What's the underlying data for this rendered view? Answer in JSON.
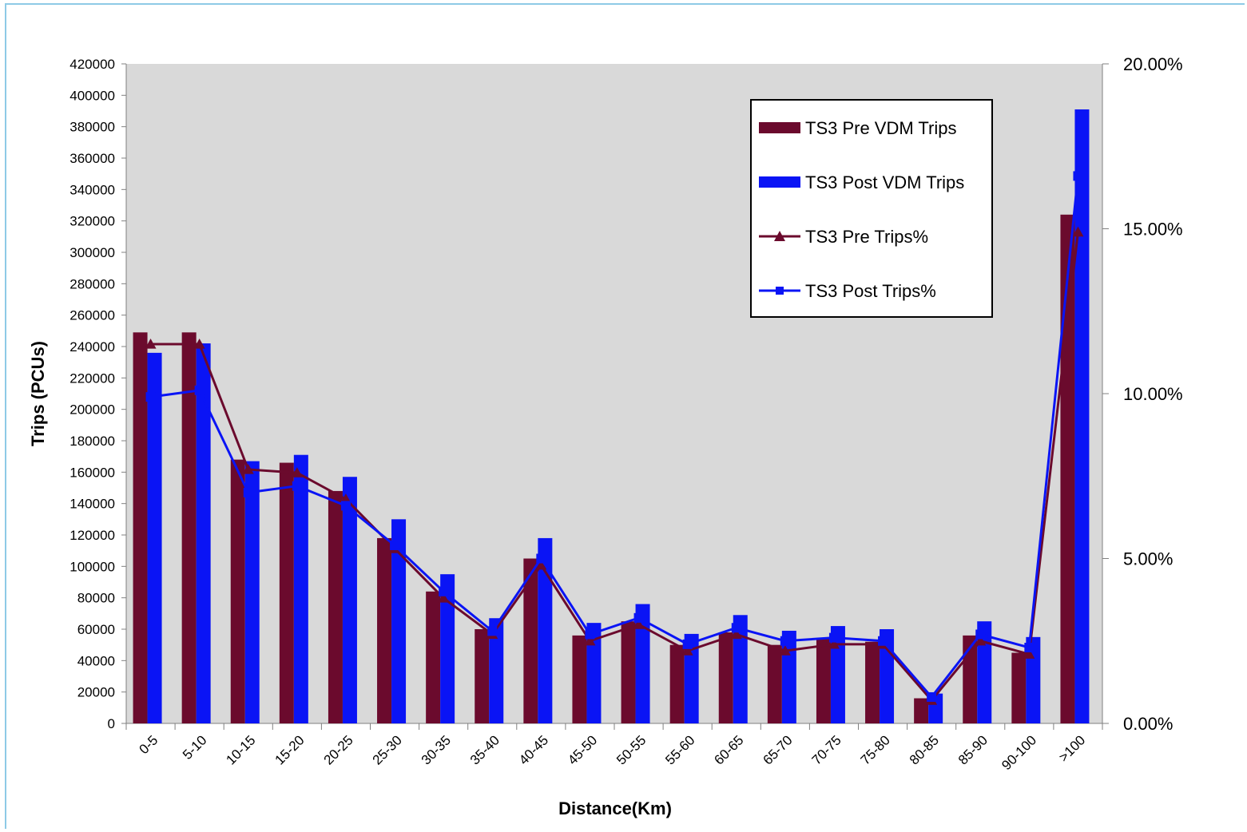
{
  "chart_data": {
    "type": "bar",
    "categories": [
      "0-5",
      "5-10",
      "10-15",
      "15-20",
      "20-25",
      "25-30",
      "30-35",
      "35-40",
      "40-45",
      "45-50",
      "50-55",
      "55-60",
      "60-65",
      "65-70",
      "70-75",
      "75-80",
      "80-85",
      "85-90",
      "90-100",
      ">100"
    ],
    "series": [
      {
        "name": "TS3 Pre VDM Trips",
        "type": "bar",
        "axis": "left",
        "color": "#6b0a2d",
        "values": [
          249000,
          249000,
          168000,
          166000,
          148000,
          118000,
          84000,
          60000,
          105000,
          56000,
          65000,
          50000,
          58000,
          50000,
          54000,
          52000,
          16000,
          56000,
          45000,
          324000
        ]
      },
      {
        "name": "TS3 Post VDM Trips",
        "type": "bar",
        "axis": "left",
        "color": "#0a14f5",
        "values": [
          236000,
          242000,
          167000,
          171000,
          157000,
          130000,
          95000,
          67000,
          118000,
          64000,
          76000,
          57000,
          69000,
          59000,
          62000,
          60000,
          19000,
          65000,
          55000,
          391000
        ]
      },
      {
        "name": "TS3 Pre Trips%",
        "type": "line",
        "axis": "right",
        "marker": "triangle",
        "color": "#6b0a2d",
        "values": [
          11.5,
          11.5,
          7.7,
          7.6,
          6.8,
          5.3,
          3.8,
          2.7,
          4.8,
          2.5,
          3.0,
          2.2,
          2.7,
          2.2,
          2.4,
          2.4,
          0.7,
          2.5,
          2.1,
          14.9
        ]
      },
      {
        "name": "TS3 Post Trips%",
        "type": "line",
        "axis": "right",
        "marker": "square",
        "color": "#0a14f5",
        "values": [
          9.9,
          10.1,
          7.0,
          7.2,
          6.6,
          5.4,
          4.0,
          2.8,
          5.0,
          2.7,
          3.2,
          2.4,
          2.9,
          2.5,
          2.6,
          2.5,
          0.8,
          2.7,
          2.3,
          16.6
        ]
      }
    ],
    "xlabel": "Distance(Km)",
    "ylabel": "Trips (PCUs)",
    "ylim": [
      0,
      420000
    ],
    "y_ticks": [
      "0",
      "20000",
      "40000",
      "60000",
      "80000",
      "100000",
      "120000",
      "140000",
      "160000",
      "180000",
      "200000",
      "220000",
      "240000",
      "260000",
      "280000",
      "300000",
      "320000",
      "340000",
      "360000",
      "380000",
      "400000",
      "420000"
    ],
    "y2lim": [
      0,
      20
    ],
    "y2_ticks": [
      "0.00%",
      "5.00%",
      "10.00%",
      "15.00%",
      "20.00%"
    ],
    "legend_position": "top-right",
    "plot_background": "#d9d9d9"
  }
}
